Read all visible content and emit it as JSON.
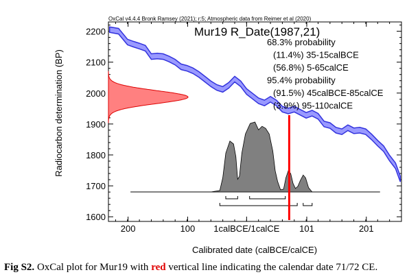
{
  "header": "OxCal v4.4.4 Bronk Ramsey (2021); r:5; Atmospheric data from Reimer et al (2020)",
  "chart_data": {
    "type": "area",
    "title": "Mur19 R_Date(1987,21)",
    "xlabel": "Calibrated date (calBCE/calCE)",
    "ylabel": "Radiocarbon determination (BP)",
    "ylim": [
      1585,
      2230
    ],
    "x_ticks": [
      {
        "label": "200",
        "year": -199
      },
      {
        "label": "100",
        "year": -99
      },
      {
        "label": "1calBCE/1calCE",
        "year": 0
      },
      {
        "label": "101",
        "year": 101
      },
      {
        "label": "201",
        "year": 201
      }
    ],
    "y_ticks": [
      1600,
      1700,
      1800,
      1900,
      2000,
      2100,
      2200
    ],
    "measurement": {
      "bp": 1987,
      "error": 21,
      "color": "#ff8080"
    },
    "calibration_curve": {
      "color": "#3333dd",
      "fill": "#9999ff",
      "points": [
        [
          -230,
          2205
        ],
        [
          -215,
          2200
        ],
        [
          -200,
          2165
        ],
        [
          -190,
          2158
        ],
        [
          -180,
          2152
        ],
        [
          -170,
          2145
        ],
        [
          -160,
          2118
        ],
        [
          -150,
          2120
        ],
        [
          -140,
          2118
        ],
        [
          -130,
          2110
        ],
        [
          -120,
          2100
        ],
        [
          -110,
          2085
        ],
        [
          -100,
          2080
        ],
        [
          -90,
          2072
        ],
        [
          -80,
          2060
        ],
        [
          -70,
          2045
        ],
        [
          -60,
          2030
        ],
        [
          -50,
          2018
        ],
        [
          -40,
          2012
        ],
        [
          -30,
          2025
        ],
        [
          -20,
          2045
        ],
        [
          -10,
          2030
        ],
        [
          0,
          2005
        ],
        [
          10,
          1990
        ],
        [
          20,
          1975
        ],
        [
          30,
          1968
        ],
        [
          40,
          1980
        ],
        [
          50,
          1968
        ],
        [
          60,
          1948
        ],
        [
          70,
          1942
        ],
        [
          80,
          1948
        ],
        [
          90,
          1938
        ],
        [
          100,
          1928
        ],
        [
          110,
          1935
        ],
        [
          120,
          1925
        ],
        [
          130,
          1900
        ],
        [
          140,
          1895
        ],
        [
          150,
          1880
        ],
        [
          160,
          1875
        ],
        [
          170,
          1888
        ],
        [
          180,
          1878
        ],
        [
          190,
          1880
        ],
        [
          200,
          1875
        ],
        [
          210,
          1858
        ],
        [
          220,
          1838
        ],
        [
          230,
          1820
        ],
        [
          240,
          1790
        ],
        [
          250,
          1765
        ],
        [
          258,
          1722
        ]
      ],
      "halfwidth_bp": 9
    },
    "probability": {
      "color": "#808080",
      "points": [
        [
          -95,
          0
        ],
        [
          -60,
          0
        ],
        [
          -45,
          0.02
        ],
        [
          -40,
          0.2
        ],
        [
          -35,
          0.55
        ],
        [
          -28,
          0.72
        ],
        [
          -22,
          0.68
        ],
        [
          -18,
          0.5
        ],
        [
          -15,
          0.18
        ],
        [
          -12,
          0.22
        ],
        [
          -8,
          0.55
        ],
        [
          -2,
          0.82
        ],
        [
          6,
          0.97
        ],
        [
          14,
          0.99
        ],
        [
          20,
          0.88
        ],
        [
          26,
          0.93
        ],
        [
          32,
          0.9
        ],
        [
          38,
          0.82
        ],
        [
          44,
          0.58
        ],
        [
          48,
          0.3
        ],
        [
          52,
          0.15
        ],
        [
          57,
          0.03
        ],
        [
          62,
          0.04
        ],
        [
          66,
          0.2
        ],
        [
          70,
          0.3
        ],
        [
          74,
          0.26
        ],
        [
          78,
          0.12
        ],
        [
          82,
          0.05
        ],
        [
          86,
          0.08
        ],
        [
          90,
          0.16
        ],
        [
          95,
          0.24
        ],
        [
          99,
          0.2
        ],
        [
          104,
          0.06
        ],
        [
          110,
          0.0
        ],
        [
          220,
          0
        ]
      ]
    },
    "ranges_68": [
      [
        -35,
        -15
      ],
      [
        5,
        65
      ]
    ],
    "ranges_95": [
      [
        -45,
        85
      ],
      [
        95,
        110
      ]
    ],
    "marker_line": {
      "year": 71.5,
      "color": "#ff0000"
    },
    "legend": [
      "68.3% probability",
      "(11.4%) 35-15calBCE",
      "(56.8%) 5-65calCE",
      "95.4% probability",
      "(91.5%) 45calBCE-85calCE",
      "(3.9%) 95-110calCE"
    ]
  },
  "caption": {
    "label": "Fig S2.",
    "before": "OxCal plot for Mur19 with",
    "highlight": "red",
    "after": "vertical line indicating the calendar date 71/72 CE."
  }
}
